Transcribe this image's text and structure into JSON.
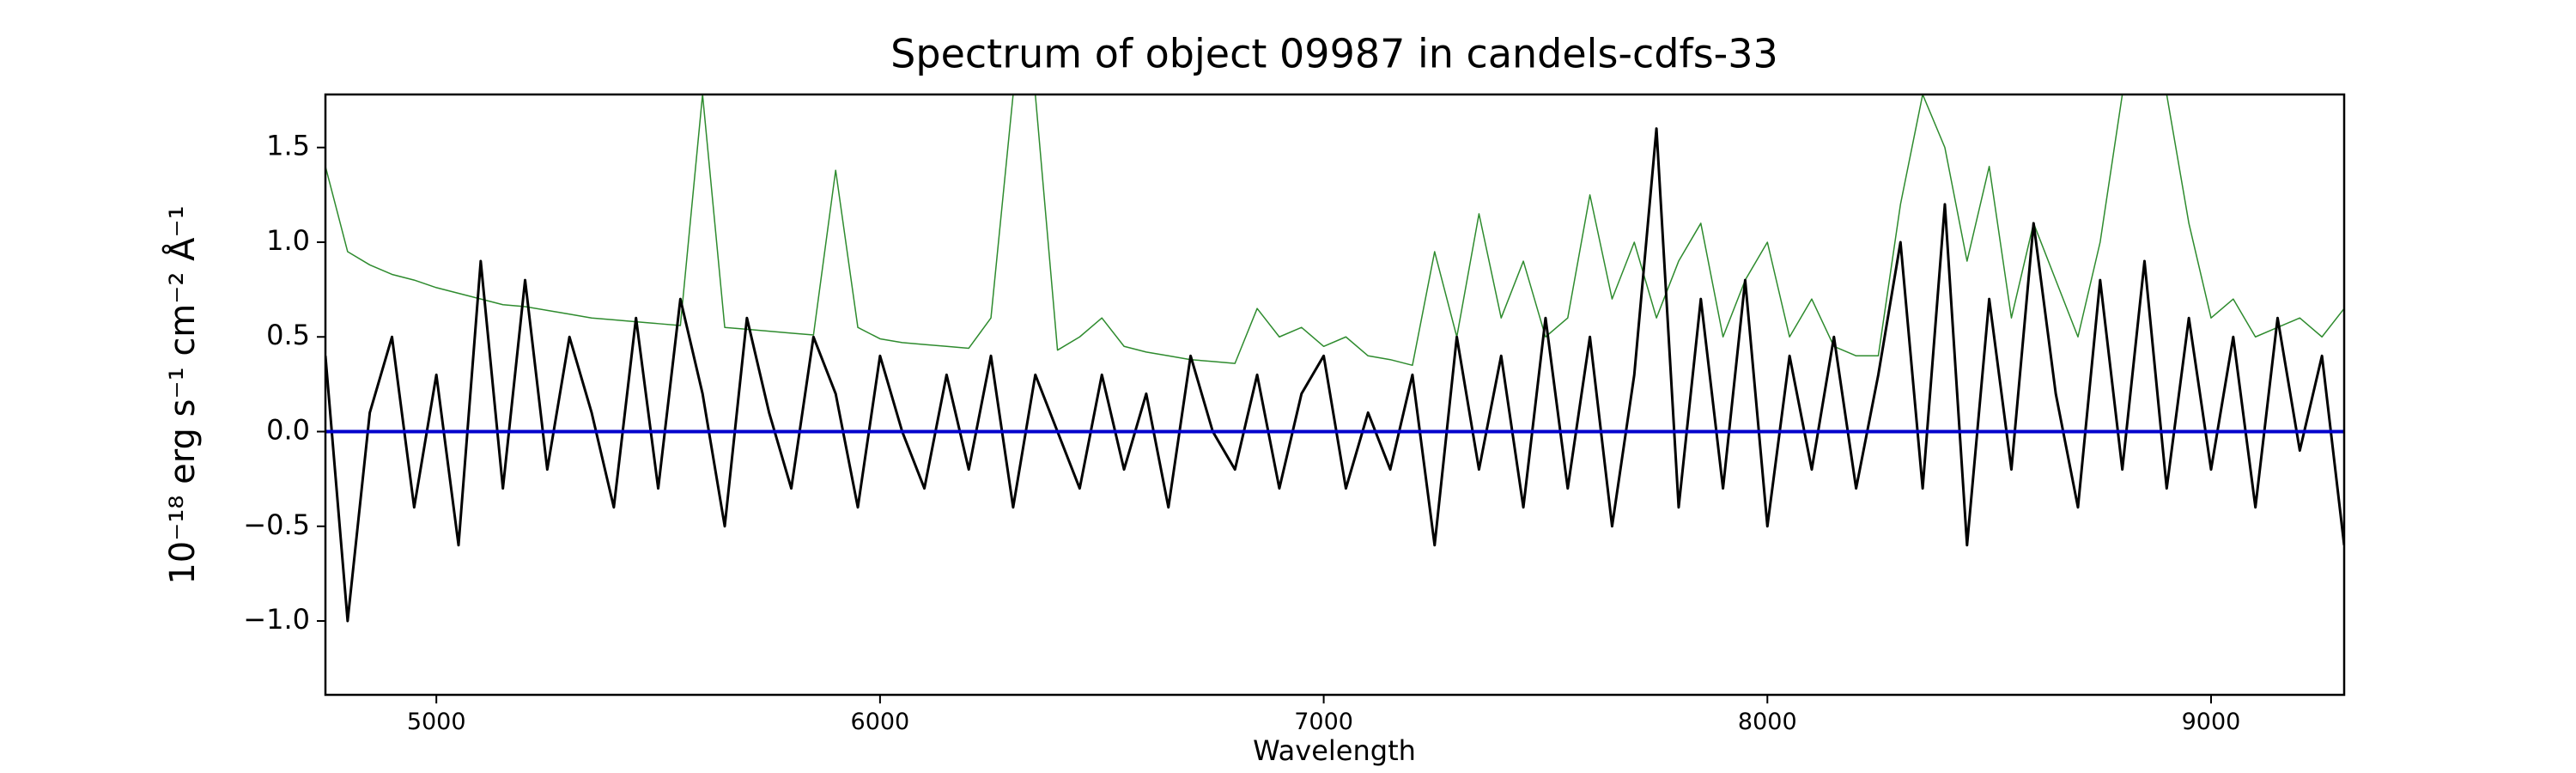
{
  "chart_data": {
    "type": "line",
    "title": "Spectrum of object 09987 in candels-cdfs-33",
    "xlabel": "Wavelength",
    "ylabel": "10⁻¹⁸ erg s⁻¹ cm⁻² Å⁻¹",
    "xlim": [
      4750,
      9300
    ],
    "ylim": [
      -1.39,
      1.78
    ],
    "xticks": [
      5000,
      6000,
      7000,
      8000,
      9000
    ],
    "yticks": [
      {
        "value": -1.0,
        "label": "−1.0"
      },
      {
        "value": -0.5,
        "label": "−0.5"
      },
      {
        "value": 0.0,
        "label": "0.0"
      },
      {
        "value": 0.5,
        "label": "0.5"
      },
      {
        "value": 1.0,
        "label": "1.0"
      },
      {
        "value": 1.5,
        "label": "1.5"
      }
    ],
    "series": [
      {
        "color": "#2e8b2e",
        "x": [
          4750,
          4800,
          4850,
          4900,
          4950,
          5000,
          5050,
          5100,
          5150,
          5200,
          5250,
          5300,
          5350,
          5400,
          5450,
          5500,
          5550,
          5600,
          5650,
          5700,
          5750,
          5800,
          5850,
          5900,
          5950,
          6000,
          6050,
          6100,
          6150,
          6200,
          6250,
          6300,
          6350,
          6400,
          6450,
          6500,
          6550,
          6600,
          6650,
          6700,
          6750,
          6800,
          6850,
          6900,
          6950,
          7000,
          7050,
          7100,
          7150,
          7200,
          7250,
          7300,
          7350,
          7400,
          7450,
          7500,
          7550,
          7600,
          7650,
          7700,
          7750,
          7800,
          7850,
          7900,
          7950,
          8000,
          8050,
          8100,
          8150,
          8200,
          8250,
          8300,
          8350,
          8400,
          8450,
          8500,
          8550,
          8600,
          8650,
          8700,
          8750,
          8800,
          8850,
          8900,
          8950,
          9000,
          9050,
          9100,
          9150,
          9200,
          9250,
          9300
        ],
        "values": [
          1.4,
          0.95,
          0.88,
          0.83,
          0.8,
          0.76,
          0.73,
          0.7,
          0.67,
          0.66,
          0.64,
          0.62,
          0.6,
          0.59,
          0.58,
          0.57,
          0.56,
          1.78,
          0.55,
          0.54,
          0.53,
          0.52,
          0.51,
          1.38,
          0.55,
          0.49,
          0.47,
          0.46,
          0.45,
          0.44,
          0.6,
          1.78,
          1.78,
          0.43,
          0.5,
          0.6,
          0.45,
          0.42,
          0.4,
          0.38,
          0.37,
          0.36,
          0.65,
          0.5,
          0.55,
          0.45,
          0.5,
          0.4,
          0.38,
          0.35,
          0.95,
          0.5,
          1.15,
          0.6,
          0.9,
          0.5,
          0.6,
          1.25,
          0.7,
          1.0,
          0.6,
          0.9,
          1.1,
          0.5,
          0.8,
          1.0,
          0.5,
          0.7,
          0.45,
          0.4,
          0.4,
          1.2,
          1.78,
          1.5,
          0.9,
          1.4,
          0.6,
          1.1,
          0.8,
          0.5,
          1.0,
          1.78,
          1.78,
          1.78,
          1.1,
          0.6,
          0.7,
          0.5,
          0.55,
          0.6,
          0.5,
          0.65
        ],
        "width": 1.5
      },
      {
        "color": "#000000",
        "x": [
          4750,
          4800,
          4850,
          4900,
          4950,
          5000,
          5050,
          5100,
          5150,
          5200,
          5250,
          5300,
          5350,
          5400,
          5450,
          5500,
          5550,
          5600,
          5650,
          5700,
          5750,
          5800,
          5850,
          5900,
          5950,
          6000,
          6050,
          6100,
          6150,
          6200,
          6250,
          6300,
          6350,
          6400,
          6450,
          6500,
          6550,
          6600,
          6650,
          6700,
          6750,
          6800,
          6850,
          6900,
          6950,
          7000,
          7050,
          7100,
          7150,
          7200,
          7250,
          7300,
          7350,
          7400,
          7450,
          7500,
          7550,
          7600,
          7650,
          7700,
          7750,
          7800,
          7850,
          7900,
          7950,
          8000,
          8050,
          8100,
          8150,
          8200,
          8250,
          8300,
          8350,
          8400,
          8450,
          8500,
          8550,
          8600,
          8650,
          8700,
          8750,
          8800,
          8850,
          8900,
          8950,
          9000,
          9050,
          9100,
          9150,
          9200,
          9250,
          9300
        ],
        "values": [
          0.4,
          -1.0,
          0.1,
          0.5,
          -0.4,
          0.3,
          -0.6,
          0.9,
          -0.3,
          0.8,
          -0.2,
          0.5,
          0.1,
          -0.4,
          0.6,
          -0.3,
          0.7,
          0.2,
          -0.5,
          0.6,
          0.1,
          -0.3,
          0.5,
          0.2,
          -0.4,
          0.4,
          0.0,
          -0.3,
          0.3,
          -0.2,
          0.4,
          -0.4,
          0.3,
          0.0,
          -0.3,
          0.3,
          -0.2,
          0.2,
          -0.4,
          0.4,
          0.0,
          -0.2,
          0.3,
          -0.3,
          0.2,
          0.4,
          -0.3,
          0.1,
          -0.2,
          0.3,
          -0.6,
          0.5,
          -0.2,
          0.4,
          -0.4,
          0.6,
          -0.3,
          0.5,
          -0.5,
          0.3,
          1.6,
          -0.4,
          0.7,
          -0.3,
          0.8,
          -0.5,
          0.4,
          -0.2,
          0.5,
          -0.3,
          0.3,
          1.0,
          -0.3,
          1.2,
          -0.6,
          0.7,
          -0.2,
          1.1,
          0.2,
          -0.4,
          0.8,
          -0.2,
          0.9,
          -0.3,
          0.6,
          -0.2,
          0.5,
          -0.4,
          0.6,
          -0.1,
          0.4,
          -0.6
        ],
        "width": 3
      },
      {
        "color": "#0000cc",
        "x": [
          4750,
          9300
        ],
        "values": [
          0,
          0
        ],
        "width": 4
      }
    ]
  }
}
